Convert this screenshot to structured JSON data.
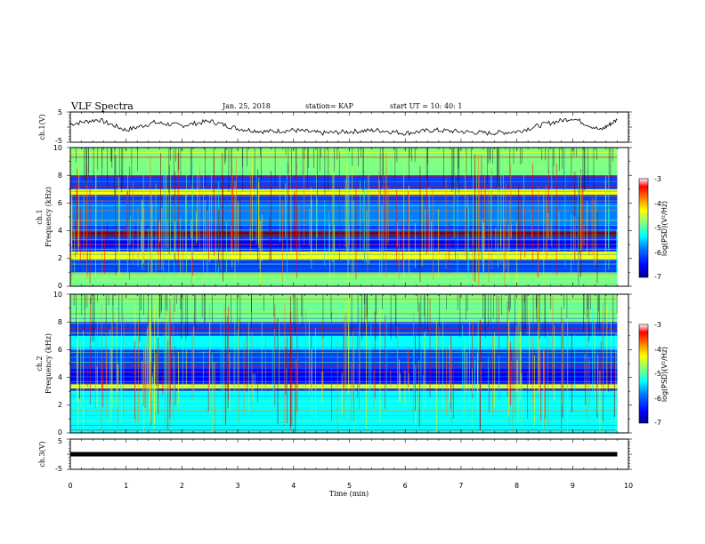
{
  "header": {
    "title": "VLF Spectra",
    "date": "Jan. 25, 2018",
    "station": "station= KAP",
    "start": "start  UT =   10: 40: 1"
  },
  "panels": {
    "ch1_voltage_label": "ch.1(V)",
    "ch1_spec_label_1": "ch.1",
    "ch1_spec_label_2": "Frequency  (kHz)",
    "ch2_spec_label_1": "ch.2",
    "ch2_spec_label_2": "Frequency  (kHz)",
    "ch3_voltage_label": "ch.3(V)",
    "colorbar_label": "log(PSD)(V²/Hz)",
    "xlabel": "Time  (min)"
  },
  "colors": {
    "background": "#ffffff",
    "axis": "#000000",
    "colormap": [
      "#00008f",
      "#0000ff",
      "#0080ff",
      "#00ffff",
      "#80ff80",
      "#ffff00",
      "#ff8000",
      "#ff0000",
      "#800000"
    ]
  },
  "chart_data": [
    {
      "type": "line",
      "name": "ch1-voltage",
      "ylabel": "ch.1(V)",
      "xlim": [
        0,
        10
      ],
      "ylim": [
        -5,
        5
      ],
      "y_ticks": [
        "5",
        "-5"
      ],
      "x": [
        0,
        0.5,
        1,
        1.5,
        2,
        2.5,
        3,
        3.5,
        4,
        4.5,
        5,
        5.5,
        6,
        6.5,
        7,
        7.5,
        8,
        8.5,
        9,
        9.5,
        9.8
      ],
      "values": [
        1,
        2.5,
        -1,
        1.5,
        0.5,
        2,
        -0.5,
        -1.5,
        -1,
        -2,
        -1.5,
        -1,
        -2,
        -1,
        -1.5,
        -2,
        -1.5,
        1,
        3,
        -1,
        2.5
      ]
    },
    {
      "type": "heatmap",
      "name": "ch1-spectrogram",
      "ylabel": "Frequency  (kHz)",
      "xlim": [
        0,
        10
      ],
      "ylim": [
        0,
        10
      ],
      "y_ticks": [
        "0",
        "2",
        "4",
        "6",
        "8",
        "10"
      ],
      "colorbar": {
        "ticks": [
          "-3",
          "-4",
          "-5",
          "-6",
          "-7"
        ],
        "range": [
          -7,
          -3
        ]
      },
      "bands": [
        {
          "f_low": 8.0,
          "f_high": 10.0,
          "level": -5.2
        },
        {
          "f_low": 6.6,
          "f_high": 7.0,
          "level": -4.6
        },
        {
          "f_low": 4.4,
          "f_high": 6.0,
          "level": -6.2
        },
        {
          "f_low": 3.6,
          "f_high": 3.9,
          "level": -3.2
        },
        {
          "f_low": 2.8,
          "f_high": 3.3,
          "level": -6.6
        },
        {
          "f_low": 1.9,
          "f_high": 2.5,
          "level": -4.4
        },
        {
          "f_low": 0.0,
          "f_high": 1.0,
          "level": -5.0
        }
      ]
    },
    {
      "type": "heatmap",
      "name": "ch2-spectrogram",
      "ylabel": "Frequency  (kHz)",
      "xlim": [
        0,
        10
      ],
      "ylim": [
        0,
        10
      ],
      "y_ticks": [
        "0",
        "2",
        "4",
        "6",
        "8",
        "10"
      ],
      "colorbar": {
        "ticks": [
          "-3",
          "-4",
          "-5",
          "-6",
          "-7"
        ],
        "range": [
          -7,
          -3
        ]
      },
      "bands": [
        {
          "f_low": 8.0,
          "f_high": 10.0,
          "level": -5.0
        },
        {
          "f_low": 6.0,
          "f_high": 7.0,
          "level": -5.4
        },
        {
          "f_low": 3.6,
          "f_high": 4.6,
          "level": -6.6
        },
        {
          "f_low": 3.2,
          "f_high": 3.5,
          "level": -4.4
        },
        {
          "f_low": 1.0,
          "f_high": 3.0,
          "level": -5.6
        },
        {
          "f_low": 0.0,
          "f_high": 1.0,
          "level": -5.4
        }
      ]
    },
    {
      "type": "line",
      "name": "ch3-voltage",
      "ylabel": "ch.3(V)",
      "xlim": [
        0,
        10
      ],
      "ylim": [
        -5,
        5
      ],
      "y_ticks": [
        "5",
        "-5"
      ],
      "x": [
        0,
        9.8
      ],
      "values": [
        0,
        0
      ],
      "xlabel": "Time  (min)",
      "x_ticks": [
        "0",
        "1",
        "2",
        "3",
        "4",
        "5",
        "6",
        "7",
        "8",
        "9",
        "10"
      ]
    }
  ]
}
